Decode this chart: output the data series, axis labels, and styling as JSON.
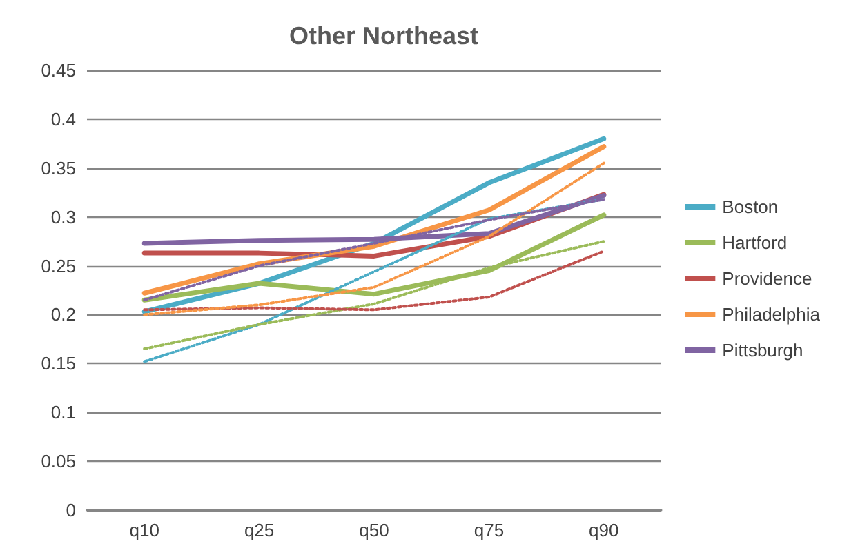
{
  "chart_data": {
    "type": "line",
    "title": "Other Northeast",
    "categories": [
      "q10",
      "q25",
      "q50",
      "q75",
      "q90"
    ],
    "series": [
      {
        "name": "Boston",
        "color": "#4bacc6",
        "values": [
          0.203,
          0.232,
          0.273,
          0.335,
          0.38
        ]
      },
      {
        "name": "Hartford",
        "color": "#9bbb59",
        "values": [
          0.215,
          0.232,
          0.221,
          0.245,
          0.302
        ]
      },
      {
        "name": "Providence",
        "color": "#c0504d",
        "values": [
          0.263,
          0.263,
          0.26,
          0.28,
          0.323
        ]
      },
      {
        "name": "Philadelphia",
        "color": "#f79646",
        "values": [
          0.222,
          0.252,
          0.27,
          0.307,
          0.372
        ]
      },
      {
        "name": "Pittsburgh",
        "color": "#8064a2",
        "values": [
          0.273,
          0.276,
          0.277,
          0.283,
          0.322
        ]
      },
      {
        "color": "#4bacc6",
        "line_style": "dotted",
        "values": [
          0.152,
          0.19,
          0.244,
          0.298,
          0.318
        ]
      },
      {
        "color": "#9bbb59",
        "line_style": "dotted",
        "values": [
          0.165,
          0.19,
          0.211,
          0.248,
          0.275
        ]
      },
      {
        "color": "#c0504d",
        "line_style": "dotted",
        "values": [
          0.205,
          0.207,
          0.205,
          0.218,
          0.265
        ]
      },
      {
        "color": "#f79646",
        "line_style": "dotted",
        "values": [
          0.2,
          0.21,
          0.228,
          0.28,
          0.355
        ]
      },
      {
        "color": "#8064a2",
        "line_style": "dotted",
        "values": [
          0.215,
          0.25,
          0.273,
          0.297,
          0.318
        ]
      }
    ],
    "ylim": [
      0,
      0.45
    ],
    "yticks": [
      0,
      0.05,
      0.1,
      0.15,
      0.2,
      0.25,
      0.3,
      0.35,
      0.4,
      0.45
    ],
    "grid": "y",
    "legend": "right",
    "line_style": "solid",
    "marker": "none"
  }
}
